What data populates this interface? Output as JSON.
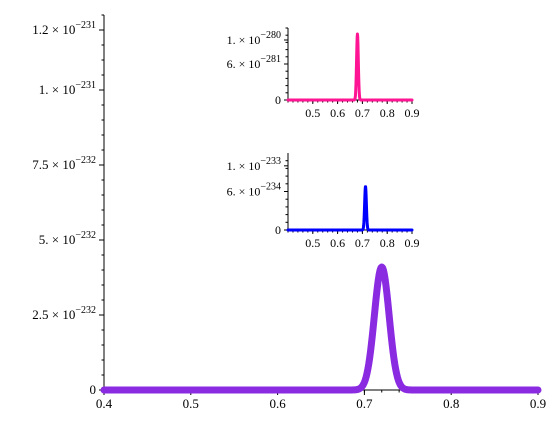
{
  "chart_data": [
    {
      "id": "main",
      "type": "line",
      "title": "",
      "xlabel": "",
      "ylabel": "",
      "xlim": [
        0.4,
        0.9
      ],
      "ylim": [
        0,
        1.25e-231
      ],
      "x_ticks": [
        0.4,
        0.5,
        0.6,
        0.7,
        0.8,
        0.9
      ],
      "x_tick_labels": [
        "0.4",
        "0.5",
        "0.6",
        "0.7",
        "0.8",
        "0.9"
      ],
      "y_ticks": [
        0,
        2.5e-232,
        5e-232,
        7.5e-232,
        1e-231,
        1.2e-231
      ],
      "y_tick_labels": [
        {
          "mantissa": "0",
          "exp": ""
        },
        {
          "mantissa": "2.5 × 10",
          "exp": "−232"
        },
        {
          "mantissa": "5. × 10",
          "exp": "−232"
        },
        {
          "mantissa": "7.5 × 10",
          "exp": "−232"
        },
        {
          "mantissa": "1. × 10",
          "exp": "−231"
        },
        {
          "mantissa": "1.2 × 10",
          "exp": "−231"
        }
      ],
      "series": [
        {
          "color": "#8a2be2",
          "peak_x": 0.72,
          "peak_y": 4.1e-232,
          "width": 0.0085
        }
      ]
    },
    {
      "id": "inset-top",
      "type": "line",
      "title": "",
      "xlim": [
        0.4,
        0.9
      ],
      "ylim": [
        0,
        1.2e-280
      ],
      "x_ticks": [
        0.5,
        0.6,
        0.7,
        0.8,
        0.9
      ],
      "x_tick_labels": [
        "0.5",
        "0.6",
        "0.7",
        "0.8",
        "0.9"
      ],
      "y_ticks": [
        0,
        6e-281,
        1e-280
      ],
      "y_tick_labels": [
        {
          "mantissa": "0",
          "exp": ""
        },
        {
          "mantissa": "6. × 10",
          "exp": "−281"
        },
        {
          "mantissa": "1. × 10",
          "exp": "−280"
        }
      ],
      "series": [
        {
          "color": "#ff1493",
          "peak_x": 0.68,
          "peak_y": 1.1e-280,
          "width": 0.0035
        }
      ]
    },
    {
      "id": "inset-bottom",
      "type": "line",
      "title": "",
      "xlim": [
        0.4,
        0.9
      ],
      "ylim": [
        0,
        1.2e-233
      ],
      "x_ticks": [
        0.5,
        0.6,
        0.7,
        0.8,
        0.9
      ],
      "x_tick_labels": [
        "0.5",
        "0.6",
        "0.7",
        "0.8",
        "0.9"
      ],
      "y_ticks": [
        0,
        6e-234,
        1e-233
      ],
      "y_tick_labels": [
        {
          "mantissa": "0",
          "exp": ""
        },
        {
          "mantissa": "6. × 10",
          "exp": "−234"
        },
        {
          "mantissa": "1. × 10",
          "exp": "−233"
        }
      ],
      "series": [
        {
          "color": "#0000ff",
          "peak_x": 0.7125,
          "peak_y": 6.8e-234,
          "width": 0.0035
        }
      ]
    }
  ]
}
